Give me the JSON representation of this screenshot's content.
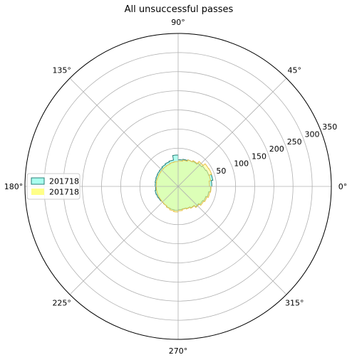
{
  "chart_data": {
    "type": "polar-histogram",
    "title": "All unsuccessful passes",
    "angle_ticks": [
      {
        "deg": 0,
        "label": "0°"
      },
      {
        "deg": 45,
        "label": "45°"
      },
      {
        "deg": 90,
        "label": "90°"
      },
      {
        "deg": 135,
        "label": "135°"
      },
      {
        "deg": 180,
        "label": "180°"
      },
      {
        "deg": 225,
        "label": "225°"
      },
      {
        "deg": 270,
        "label": "270°"
      },
      {
        "deg": 315,
        "label": "315°"
      }
    ],
    "radial_ticks": [
      {
        "value": 50,
        "label": "50"
      },
      {
        "value": 100,
        "label": "100"
      },
      {
        "value": 150,
        "label": "150"
      },
      {
        "value": 200,
        "label": "200"
      },
      {
        "value": 250,
        "label": "250"
      },
      {
        "value": 300,
        "label": "300"
      },
      {
        "value": 350,
        "label": "350"
      }
    ],
    "rlim": [
      -50,
      350
    ],
    "bin_width_deg": 10,
    "bin_start_deg": [
      0,
      10,
      20,
      30,
      40,
      50,
      60,
      70,
      80,
      90,
      100,
      110,
      120,
      130,
      140,
      150,
      160,
      170,
      180,
      190,
      200,
      210,
      220,
      230,
      240,
      250,
      260,
      270,
      280,
      290,
      300,
      310,
      320,
      330,
      340,
      350
    ],
    "legend_position": "center-left",
    "series": [
      {
        "name": "201718",
        "fill": "#aaffee",
        "edge": "#2a7f78",
        "values": [
          38,
          42,
          35,
          33,
          30,
          26,
          24,
          22,
          20,
          32,
          20,
          18,
          16,
          14,
          13,
          12,
          11,
          10,
          9,
          11,
          10,
          9,
          8,
          9,
          11,
          12,
          13,
          11,
          10,
          12,
          15,
          20,
          24,
          27,
          31,
          35
        ]
      },
      {
        "name": "201718",
        "fill": "#ffff88",
        "edge": "#e6c04a",
        "values": [
          32,
          36,
          43,
          42,
          35,
          28,
          24,
          20,
          17,
          15,
          14,
          12,
          11,
          10,
          9,
          8,
          8,
          7,
          7,
          7,
          7,
          7,
          8,
          9,
          12,
          15,
          17,
          14,
          11,
          13,
          16,
          22,
          27,
          30,
          34,
          36
        ]
      }
    ]
  }
}
